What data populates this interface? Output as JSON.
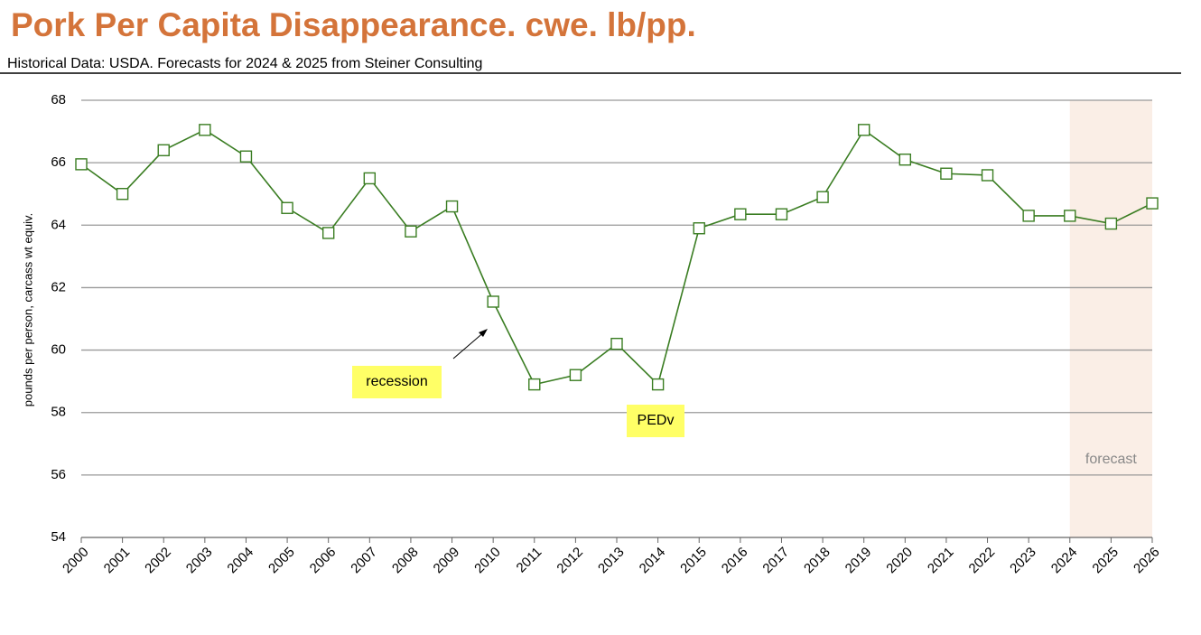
{
  "chart_data": {
    "type": "line",
    "title": "Pork Per Capita Disappearance.  cwe.  lb/pp.",
    "subtitle": "Historical Data:  USDA.  Forecasts for 2024 & 2025 from Steiner Consulting",
    "y_label": "pounds per person, carcass wt equiv.",
    "x": [
      2000,
      2001,
      2002,
      2003,
      2004,
      2005,
      2006,
      2007,
      2008,
      2009,
      2010,
      2011,
      2012,
      2013,
      2014,
      2015,
      2016,
      2017,
      2018,
      2019,
      2020,
      2021,
      2022,
      2023,
      2024,
      2025,
      2026
    ],
    "series": [
      {
        "color": "#3a7d22",
        "values": [
          65.95,
          65.0,
          66.4,
          67.05,
          66.2,
          64.55,
          63.75,
          65.5,
          63.8,
          64.6,
          61.55,
          58.9,
          59.2,
          60.2,
          58.9,
          63.9,
          64.35,
          64.35,
          64.9,
          67.05,
          66.1,
          65.65,
          65.6,
          64.3,
          64.3,
          64.05,
          64.7
        ]
      }
    ],
    "xlim": [
      2000,
      2026
    ],
    "xticks": [
      2000,
      2001,
      2002,
      2003,
      2004,
      2005,
      2006,
      2007,
      2008,
      2009,
      2010,
      2011,
      2012,
      2013,
      2014,
      2015,
      2016,
      2017,
      2018,
      2019,
      2020,
      2021,
      2022,
      2023,
      2024,
      2025,
      2026
    ],
    "ylim": [
      54,
      68
    ],
    "yticks": [
      54,
      56,
      58,
      60,
      62,
      64,
      66,
      68
    ],
    "grid": true,
    "forecast_region": {
      "x": [
        2024,
        2026
      ],
      "label": "forecast",
      "color": "#faeee6"
    },
    "annotations": [
      {
        "text": "recession"
      },
      {
        "text": "PEDv"
      }
    ]
  }
}
